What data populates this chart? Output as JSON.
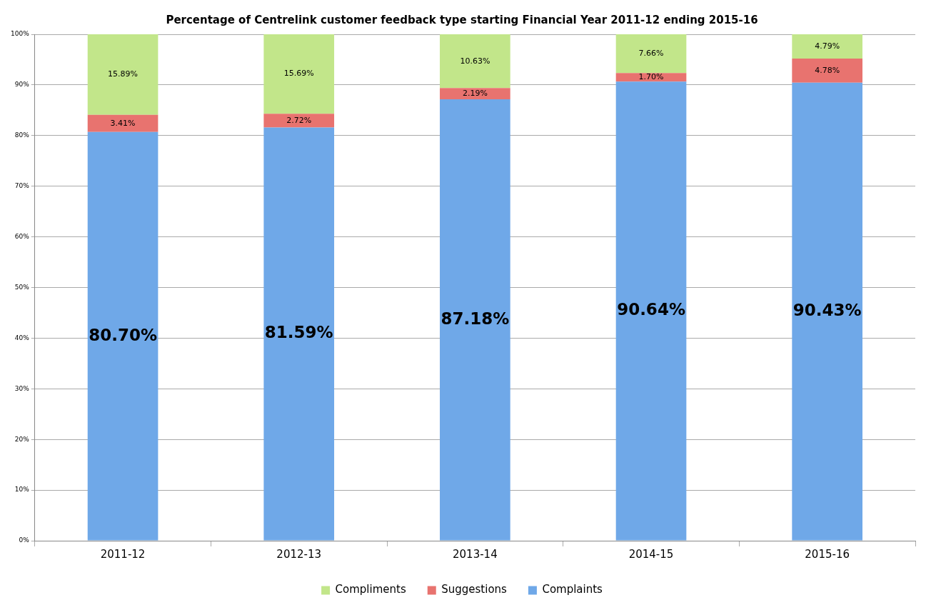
{
  "chart_data": {
    "type": "bar",
    "title": "Percentage of Centrelink customer feedback type starting Financial Year 2011-12 ending 2015-16",
    "categories": [
      "2011-12",
      "2012-13",
      "2013-14",
      "2014-15",
      "2015-16"
    ],
    "stacked": true,
    "series": [
      {
        "name": "Complaints",
        "color": "#6fa8e8",
        "values": [
          80.7,
          81.59,
          87.18,
          90.64,
          90.43
        ],
        "value_labels": [
          "80.70%",
          "81.59%",
          "87.18%",
          "90.64%",
          "90.43%"
        ]
      },
      {
        "name": "Suggestions",
        "color": "#e8736f",
        "values": [
          3.41,
          2.72,
          2.19,
          1.7,
          4.78
        ],
        "value_labels": [
          "3.41%",
          "2.72%",
          "2.19%",
          "1.70%",
          "4.78%"
        ]
      },
      {
        "name": "Compliments",
        "color": "#c2e68a",
        "values": [
          15.89,
          15.69,
          10.63,
          7.66,
          4.79
        ],
        "value_labels": [
          "15.89%",
          "15.69%",
          "10.63%",
          "7.66%",
          "4.79%"
        ]
      }
    ],
    "ylim": [
      0,
      100
    ],
    "yticks": [
      {
        "value": 0,
        "label": "0%"
      },
      {
        "value": 10,
        "label": "10%"
      },
      {
        "value": 20,
        "label": "20%"
      },
      {
        "value": 30,
        "label": "30%"
      },
      {
        "value": 40,
        "label": "40%"
      },
      {
        "value": 50,
        "label": "50%"
      },
      {
        "value": 60,
        "label": "60%"
      },
      {
        "value": 70,
        "label": "70%"
      },
      {
        "value": 80,
        "label": "80%"
      },
      {
        "value": 90,
        "label": "90%"
      },
      {
        "value": 100,
        "label": "100%"
      }
    ],
    "grid": "y",
    "legend": "bottom"
  }
}
